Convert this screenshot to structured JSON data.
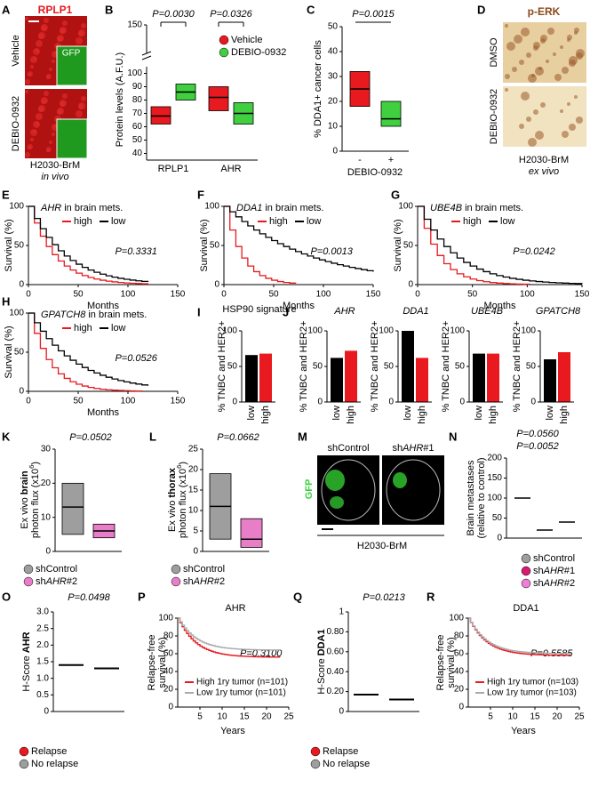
{
  "panel_a": {
    "letter": "A",
    "title": "RPLP1",
    "rows": [
      "Vehicle",
      "DEBIO-0932"
    ],
    "inset": "GFP",
    "caption": "H2030-BrM",
    "note": "in vivo"
  },
  "panel_b": {
    "letter": "B",
    "ylabel": "Protein levels (A.F.U.)",
    "ylim": [
      35,
      105
    ],
    "yticks": [
      40,
      50,
      60,
      70,
      80,
      90,
      100
    ],
    "ytop": 150,
    "categories": [
      "RPLP1",
      "AHR"
    ],
    "pvalues": [
      "P=0.0030",
      "P=0.0326"
    ],
    "series": [
      {
        "name": "Vehicle",
        "color": "#e8191f",
        "boxes": [
          [
            62,
            68,
            75
          ],
          [
            72,
            82,
            90
          ]
        ]
      },
      {
        "name": "DEBIO-0932",
        "color": "#3fcf3f",
        "boxes": [
          [
            80,
            86,
            92
          ],
          [
            62,
            70,
            78
          ]
        ]
      }
    ]
  },
  "panel_c": {
    "letter": "C",
    "pvalue": "P=0.0015",
    "ylabel": "% DDA1+ cancer cells",
    "ylim": [
      0,
      50
    ],
    "yticks": [
      0,
      10,
      20,
      30,
      40,
      50
    ],
    "categories": [
      "-",
      "+"
    ],
    "xlabel": "DEBIO-0932",
    "colors": [
      "#e8191f",
      "#3fcf3f"
    ],
    "boxes": [
      [
        18,
        25,
        32
      ],
      [
        10,
        13,
        20
      ]
    ]
  },
  "panel_d": {
    "letter": "D",
    "title": "p-ERK",
    "rows": [
      "DMSO",
      "DEBIO-0932"
    ],
    "caption": "H2030-BrM",
    "note": "ex vivo"
  },
  "panel_e": {
    "letter": "E",
    "gene": "AHR",
    "title": "in brain mets.",
    "legend": [
      "high",
      "low"
    ],
    "colors": [
      "#e8191f",
      "#000000"
    ],
    "pvalue": "P=0.3331",
    "ylabel": "Survival (%)",
    "xlabel": "Months",
    "ylim": [
      0,
      100
    ],
    "yticks": [
      0,
      50,
      100
    ],
    "xlim": [
      0,
      150
    ],
    "xticks": [
      0,
      50,
      100,
      150
    ]
  },
  "panel_f": {
    "letter": "F",
    "gene": "DDA1",
    "title": "in brain mets.",
    "legend": [
      "high",
      "low"
    ],
    "colors": [
      "#e8191f",
      "#000000"
    ],
    "pvalue": "P=0.0013",
    "ylabel": "Survival (%)",
    "xlabel": "Months",
    "ylim": [
      0,
      100
    ],
    "yticks": [
      0,
      50,
      100
    ],
    "xlim": [
      0,
      150
    ],
    "xticks": [
      0,
      50,
      100,
      150
    ]
  },
  "panel_g": {
    "letter": "G",
    "gene": "UBE4B",
    "title": "in brain mets.",
    "legend": [
      "high",
      "low"
    ],
    "colors": [
      "#e8191f",
      "#000000"
    ],
    "pvalue": "P=0.0242",
    "ylabel": "Survival (%)",
    "xlabel": "Months",
    "ylim": [
      0,
      100
    ],
    "yticks": [
      0,
      50,
      100
    ],
    "xlim": [
      0,
      150
    ],
    "xticks": [
      0,
      50,
      100,
      150
    ]
  },
  "panel_h": {
    "letter": "H",
    "gene": "GPATCH8",
    "title": "in brain mets.",
    "legend": [
      "high",
      "low"
    ],
    "colors": [
      "#e8191f",
      "#000000"
    ],
    "pvalue": "P=0.0526",
    "ylabel": "Survival (%)",
    "xlabel": "Months",
    "ylim": [
      0,
      100
    ],
    "yticks": [
      0,
      50,
      100
    ],
    "xlim": [
      0,
      150
    ],
    "xticks": [
      0,
      50,
      100,
      150
    ]
  },
  "panel_i": {
    "letter": "I",
    "title": "HSP90 signature",
    "ylabel": "% TNBC and HER2+",
    "categories": [
      "low",
      "high"
    ],
    "colors": [
      "#000000",
      "#e8191f"
    ],
    "values": [
      66,
      68
    ],
    "ylim": [
      0,
      100
    ],
    "yticks": [
      0,
      50,
      100
    ]
  },
  "panel_j": {
    "letter": "J",
    "ylabel": "% TNBC and HER2+",
    "categories": [
      "low",
      "high"
    ],
    "colors": [
      "#000000",
      "#e8191f"
    ],
    "ylim": [
      0,
      100
    ],
    "yticks": [
      0,
      50,
      100
    ],
    "charts": [
      {
        "gene": "AHR",
        "values": [
          62,
          72
        ]
      },
      {
        "gene": "DDA1",
        "values": [
          100,
          62
        ]
      },
      {
        "gene": "UBE4B",
        "values": [
          68,
          68
        ]
      },
      {
        "gene": "GPATCH8",
        "values": [
          60,
          70
        ]
      }
    ]
  },
  "panel_k": {
    "letter": "K",
    "pvalue": "P=0.0502",
    "ylabel": [
      "Ex vivo",
      "brain",
      "photon flux (x10",
      "6",
      ")"
    ],
    "ylim": [
      0,
      30
    ],
    "yticks": [
      0,
      10,
      20,
      30
    ],
    "legend": [
      [
        "shControl"
      ],
      [
        "sh",
        "AHR",
        "#2"
      ]
    ],
    "colors": [
      "#9e9e9e",
      "#e87dc8"
    ],
    "boxes": [
      [
        5,
        13,
        20
      ],
      [
        4,
        6,
        8
      ]
    ]
  },
  "panel_l": {
    "letter": "L",
    "pvalue": "P=0.0662",
    "ylabel": [
      "Ex vivo",
      "thorax",
      "photon flux (x10",
      "6",
      ")"
    ],
    "ylim": [
      0,
      25
    ],
    "yticks": [
      0,
      5,
      10,
      15,
      20,
      25
    ],
    "legend": [
      [
        "shControl"
      ],
      [
        "sh",
        "AHR",
        "#2"
      ]
    ],
    "colors": [
      "#9e9e9e",
      "#e87dc8"
    ],
    "boxes": [
      [
        3,
        11,
        19
      ],
      [
        1,
        3,
        8
      ]
    ]
  },
  "panel_m": {
    "letter": "M",
    "stain": "GFP",
    "labels": [
      [
        "shControl"
      ],
      [
        "sh",
        "AHR",
        "#1"
      ]
    ],
    "caption": "H2030-BrM"
  },
  "panel_n": {
    "letter": "N",
    "pvalues": [
      "P=0.0560",
      "P=0.0052"
    ],
    "ylabel": [
      "Brain metastases",
      "(relative to control)"
    ],
    "ylim": [
      0,
      200
    ],
    "yticks": [
      0,
      50,
      100,
      150,
      200
    ],
    "legend": [
      [
        "shControl"
      ],
      [
        "sh",
        "AHR",
        "#1"
      ],
      [
        "sh",
        "AHR",
        "#2"
      ]
    ],
    "colors": [
      "#9e9e9e",
      "#d81b72",
      "#f07ed6"
    ],
    "means": [
      100,
      20,
      40
    ]
  },
  "panel_o": {
    "letter": "O",
    "pvalue": "P=0.0498",
    "ylabel": [
      "H-Score",
      "AHR"
    ],
    "ylim": [
      0,
      3
    ],
    "yticks": [
      0,
      0.5,
      {
        "value": 1,
        "label": "1.0"
      },
      1.5,
      {
        "value": 2,
        "label": "2.0"
      },
      2.5,
      {
        "value": 3,
        "label": "3.0"
      }
    ],
    "legend": [
      "Relapse",
      "No relapse"
    ],
    "colors": [
      "#e8191f",
      "#9e9e9e"
    ],
    "means": [
      1.4,
      1.3
    ]
  },
  "panel_p": {
    "letter": "P",
    "title": "AHR",
    "ylabel": [
      "Relapse-free",
      "survival (%)"
    ],
    "xlabel": "Years",
    "pvalue": "P=0.3100",
    "ylim": [
      0,
      100
    ],
    "yticks": [
      0,
      20,
      40,
      60,
      80,
      100
    ],
    "xlim": [
      0,
      25
    ],
    "xticks": [
      5,
      10,
      15,
      20,
      25
    ],
    "legend": [
      "High 1ry tumor (n=101)",
      "Low 1ry tumor (n=101)"
    ],
    "colors": [
      "#e8191f",
      "#aaaaaa"
    ]
  },
  "panel_q": {
    "letter": "Q",
    "pvalue": "P=0.0213",
    "ylabel": [
      "H-Score",
      "DDA1"
    ],
    "ylim": [
      0,
      1
    ],
    "yticks": [
      0,
      {
        "value": 0.2,
        "label": "0.20"
      },
      {
        "value": 0.4,
        "label": "0.40"
      },
      {
        "value": 0.6,
        "label": "0.60"
      },
      {
        "value": 0.8,
        "label": "0.80"
      },
      1
    ],
    "legend": [
      "Relapse",
      "No relapse"
    ],
    "colors": [
      "#e8191f",
      "#9e9e9e"
    ],
    "means": [
      0.17,
      0.12
    ]
  },
  "panel_r": {
    "letter": "R",
    "title": "DDA1",
    "ylabel": [
      "Relapse-free",
      "survival (%)"
    ],
    "xlabel": "Years",
    "pvalue": "P=0.5585",
    "ylim": [
      0,
      100
    ],
    "yticks": [
      0,
      20,
      40,
      60,
      80,
      100
    ],
    "xlim": [
      0,
      25
    ],
    "xticks": [
      5,
      10,
      15,
      20,
      25
    ],
    "legend": [
      "High 1ry tumor (n=103)",
      "Low 1ry tumor (n=103)"
    ],
    "colors": [
      "#e8191f",
      "#aaaaaa"
    ]
  }
}
